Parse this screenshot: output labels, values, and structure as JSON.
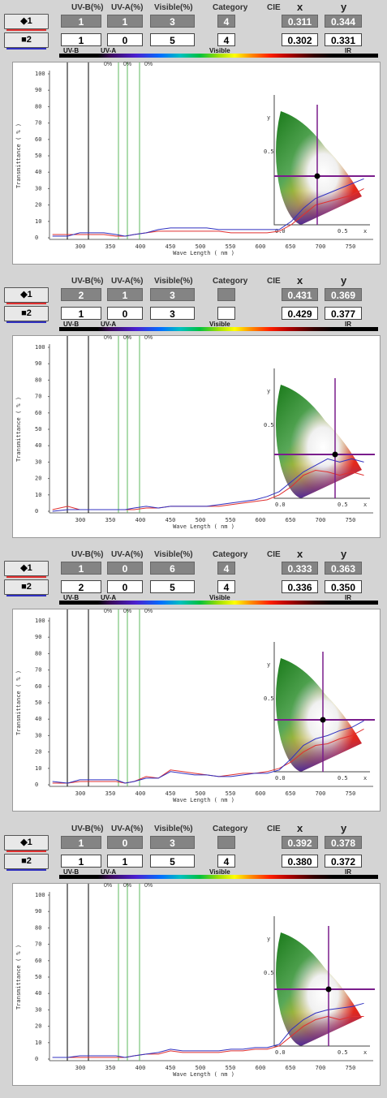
{
  "header_labels": {
    "uvb": "UV-B(%)",
    "uva": "UV-A(%)",
    "visible": "Visible(%)",
    "category": "Category",
    "cie": "CIE",
    "x": "x",
    "y": "y"
  },
  "spectrum_labels": {
    "uvb": "UV-B",
    "uva": "UV-A",
    "visible": "Visible",
    "ir": "IR"
  },
  "percent_labels": [
    "0%",
    "0%",
    "0%"
  ],
  "axis": {
    "ylabel": "Transmittance ( % )",
    "xlabel": "Wave Length ( nm )",
    "yticks": [
      "0",
      "10",
      "20",
      "30",
      "40",
      "50",
      "60",
      "70",
      "80",
      "90",
      "100"
    ],
    "xticks": [
      "300",
      "350",
      "400",
      "450",
      "500",
      "550",
      "600",
      "650",
      "700",
      "750"
    ],
    "cie_y_label": "y",
    "cie_x_label": "x",
    "cie_tick_05": "0.5",
    "cie_tick_00": "0.0"
  },
  "colors": {
    "series1": "#e03030",
    "series2": "#3030c0",
    "panel_bg": "#d4d4d4",
    "crosshair": "#7a1d8c"
  },
  "panels": [
    {
      "s1": {
        "label": "◆1",
        "uvb": "1",
        "uva": "1",
        "vis": "3",
        "cat": "4",
        "x": "0.311",
        "y": "0.344"
      },
      "s2": {
        "label": "■2",
        "uvb": "1",
        "uva": "0",
        "vis": "5",
        "cat": "4",
        "x": "0.302",
        "y": "0.331"
      }
    },
    {
      "s1": {
        "label": "◆1",
        "uvb": "2",
        "uva": "1",
        "vis": "3",
        "cat": "",
        "x": "0.431",
        "y": "0.369"
      },
      "s2": {
        "label": "■2",
        "uvb": "1",
        "uva": "0",
        "vis": "3",
        "cat": "",
        "x": "0.429",
        "y": "0.377"
      }
    },
    {
      "s1": {
        "label": "◆1",
        "uvb": "1",
        "uva": "0",
        "vis": "6",
        "cat": "4",
        "x": "0.333",
        "y": "0.363"
      },
      "s2": {
        "label": "■2",
        "uvb": "2",
        "uva": "0",
        "vis": "5",
        "cat": "4",
        "x": "0.336",
        "y": "0.350"
      }
    },
    {
      "s1": {
        "label": "◆1",
        "uvb": "1",
        "uva": "0",
        "vis": "3",
        "cat": "",
        "x": "0.392",
        "y": "0.378"
      },
      "s2": {
        "label": "■2",
        "uvb": "1",
        "uva": "1",
        "vis": "5",
        "cat": "4",
        "x": "0.380",
        "y": "0.372"
      }
    }
  ],
  "chart_data": [
    {
      "type": "line",
      "xlim": [
        270,
        800
      ],
      "ylim": [
        0,
        100
      ],
      "series": [
        {
          "x": [
            275,
            300,
            320,
            340,
            360,
            380,
            395,
            410,
            430,
            450,
            470,
            490,
            510,
            530,
            550,
            570,
            590,
            610,
            630,
            650,
            670,
            690,
            710,
            730,
            750,
            770,
            790
          ],
          "values": [
            2,
            2,
            2,
            2,
            2,
            1,
            1,
            2,
            3,
            4,
            4,
            4,
            4,
            4,
            4,
            3,
            3,
            3,
            3,
            4,
            8,
            14,
            20,
            22,
            24,
            26,
            30
          ]
        },
        {
          "x": [
            275,
            300,
            320,
            340,
            360,
            380,
            395,
            410,
            430,
            450,
            470,
            490,
            510,
            530,
            550,
            570,
            590,
            610,
            630,
            650,
            670,
            690,
            710,
            730,
            750,
            770,
            790
          ],
          "values": [
            1,
            1,
            3,
            3,
            3,
            2,
            1,
            2,
            3,
            5,
            6,
            6,
            6,
            6,
            5,
            5,
            5,
            5,
            5,
            5,
            10,
            18,
            24,
            27,
            30,
            33,
            36
          ]
        }
      ]
    },
    {
      "type": "line",
      "xlim": [
        270,
        800
      ],
      "ylim": [
        0,
        100
      ],
      "series": [
        {
          "x": [
            275,
            300,
            320,
            340,
            360,
            380,
            395,
            410,
            430,
            450,
            470,
            490,
            510,
            530,
            550,
            570,
            590,
            610,
            630,
            650,
            670,
            690,
            710,
            730,
            750,
            770,
            790
          ],
          "values": [
            1,
            3,
            1,
            1,
            1,
            1,
            1,
            1,
            2,
            2,
            3,
            3,
            3,
            3,
            3,
            4,
            5,
            6,
            7,
            10,
            15,
            22,
            25,
            24,
            22,
            24,
            22
          ]
        },
        {
          "x": [
            275,
            300,
            320,
            340,
            360,
            380,
            395,
            410,
            430,
            450,
            470,
            490,
            510,
            530,
            550,
            570,
            590,
            610,
            630,
            650,
            670,
            690,
            710,
            730,
            750,
            770,
            790
          ],
          "values": [
            0,
            1,
            1,
            1,
            1,
            1,
            1,
            2,
            3,
            2,
            3,
            3,
            3,
            3,
            4,
            5,
            6,
            7,
            9,
            12,
            18,
            24,
            28,
            32,
            30,
            32,
            30
          ]
        }
      ]
    },
    {
      "type": "line",
      "xlim": [
        270,
        800
      ],
      "ylim": [
        0,
        100
      ],
      "series": [
        {
          "x": [
            275,
            300,
            320,
            340,
            360,
            380,
            395,
            410,
            430,
            450,
            470,
            490,
            510,
            530,
            550,
            570,
            590,
            610,
            630,
            650,
            670,
            690,
            710,
            730,
            750,
            770,
            790
          ],
          "values": [
            1,
            1,
            2,
            2,
            2,
            2,
            1,
            2,
            5,
            4,
            9,
            8,
            7,
            6,
            5,
            6,
            7,
            7,
            8,
            10,
            14,
            20,
            24,
            25,
            28,
            30,
            34
          ]
        },
        {
          "x": [
            275,
            300,
            320,
            340,
            360,
            380,
            395,
            410,
            430,
            450,
            470,
            490,
            510,
            530,
            550,
            570,
            590,
            610,
            630,
            650,
            670,
            690,
            710,
            730,
            750,
            770,
            790
          ],
          "values": [
            2,
            1,
            3,
            3,
            3,
            3,
            1,
            2,
            4,
            4,
            8,
            7,
            6,
            6,
            5,
            5,
            6,
            7,
            7,
            9,
            16,
            24,
            28,
            30,
            33,
            35,
            39
          ]
        }
      ]
    },
    {
      "type": "line",
      "xlim": [
        270,
        800
      ],
      "ylim": [
        0,
        100
      ],
      "series": [
        {
          "x": [
            275,
            300,
            320,
            340,
            360,
            380,
            395,
            410,
            430,
            450,
            470,
            490,
            510,
            530,
            550,
            570,
            590,
            610,
            630,
            650,
            670,
            690,
            710,
            730,
            750,
            770,
            790
          ],
          "values": [
            1,
            1,
            1,
            1,
            1,
            1,
            1,
            2,
            3,
            3,
            5,
            4,
            4,
            4,
            4,
            5,
            5,
            6,
            6,
            8,
            14,
            20,
            24,
            26,
            24,
            26,
            26
          ]
        },
        {
          "x": [
            275,
            300,
            320,
            340,
            360,
            380,
            395,
            410,
            430,
            450,
            470,
            490,
            510,
            530,
            550,
            570,
            590,
            610,
            630,
            650,
            670,
            690,
            710,
            730,
            750,
            770,
            790
          ],
          "values": [
            1,
            1,
            2,
            2,
            2,
            2,
            1,
            2,
            3,
            4,
            6,
            5,
            5,
            5,
            5,
            6,
            6,
            7,
            7,
            9,
            18,
            24,
            28,
            30,
            31,
            32,
            34
          ]
        }
      ]
    }
  ]
}
